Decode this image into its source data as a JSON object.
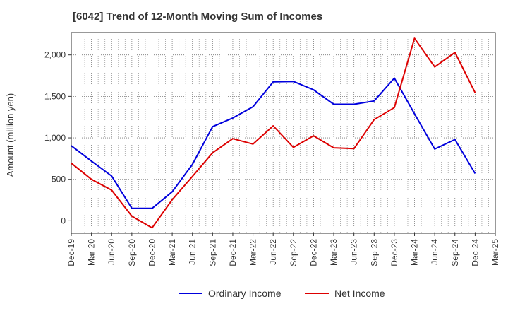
{
  "chart_data": {
    "type": "line",
    "title": "[6042]  Trend of 12-Month Moving Sum of Incomes",
    "xlabel": "",
    "ylabel": "Amount (million yen)",
    "categories": [
      "Dec-19",
      "Mar-20",
      "Jun-20",
      "Sep-20",
      "Dec-20",
      "Mar-21",
      "Jun-21",
      "Sep-21",
      "Dec-21",
      "Mar-22",
      "Jun-22",
      "Sep-22",
      "Dec-22",
      "Mar-23",
      "Jun-23",
      "Sep-23",
      "Dec-23",
      "Mar-24",
      "Jun-24",
      "Sep-24",
      "Dec-24",
      "Mar-25"
    ],
    "ylim": [
      -150,
      2270
    ],
    "yticks": [
      0,
      500,
      1000,
      1500,
      2000
    ],
    "ytick_labels": [
      "0",
      "500",
      "1,000",
      "1,500",
      "2,000"
    ],
    "grid": true,
    "legend_position": "bottom-center",
    "series": [
      {
        "name": "Ordinary Income",
        "color": "#0000dd",
        "values": [
          905,
          720,
          540,
          150,
          150,
          350,
          680,
          1135,
          1240,
          1375,
          1675,
          1680,
          1580,
          1405,
          1405,
          1445,
          1720,
          1290,
          865,
          980,
          570,
          null
        ]
      },
      {
        "name": "Net Income",
        "color": "#dd0000",
        "values": [
          695,
          500,
          370,
          55,
          -85,
          255,
          535,
          820,
          990,
          925,
          1145,
          885,
          1025,
          880,
          870,
          1220,
          1365,
          2200,
          1855,
          2030,
          1545,
          null
        ]
      }
    ]
  }
}
